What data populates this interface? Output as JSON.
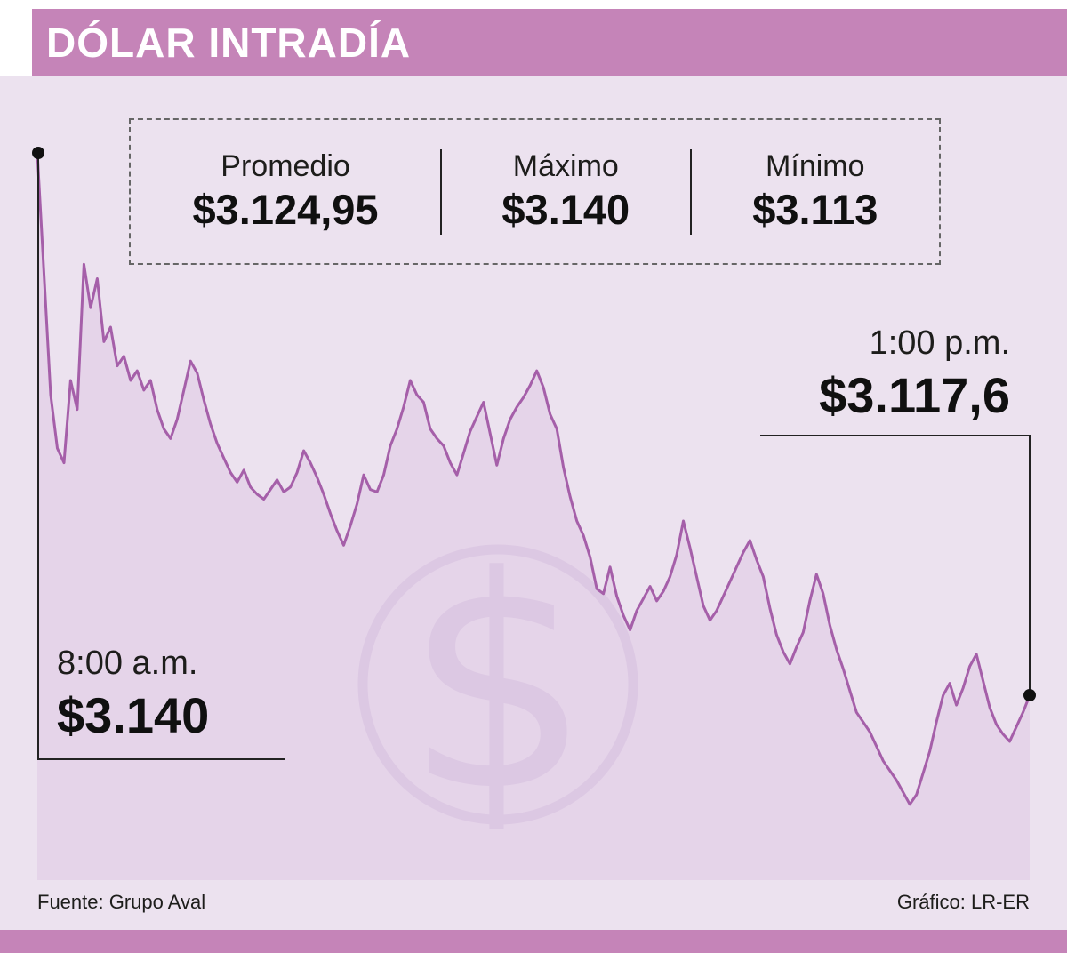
{
  "header": {
    "title": "DÓLAR INTRADÍA"
  },
  "stats": {
    "items": [
      {
        "label": "Promedio",
        "value": "$3.124,95"
      },
      {
        "label": "Máximo",
        "value": "$3.140"
      },
      {
        "label": "Mínimo",
        "value": "$3.113"
      }
    ]
  },
  "annotations": {
    "start": {
      "time": "8:00 a.m.",
      "value": "$3.140"
    },
    "end": {
      "time": "1:00 p.m.",
      "value": "$3.117,6"
    }
  },
  "watermark": {
    "symbol": "$"
  },
  "footer": {
    "source": "Fuente: Grupo Aval",
    "credit": "Gráfico: LR-ER"
  },
  "colors": {
    "header_bar": "#c584b8",
    "background": "#ece2ef",
    "area_fill": "#e5d4e9",
    "line": "#a55fa9",
    "watermark": "#d9c3e1",
    "text": "#1d1d1b"
  },
  "chart_data": {
    "type": "area",
    "title": "Dólar intradía",
    "x_start_label": "8:00 a.m.",
    "x_end_label": "1:00 p.m.",
    "y_unit": "COP",
    "ylim": [
      3113,
      3141
    ],
    "grid": false,
    "legend": false,
    "start_value": 3140.0,
    "end_value": 3117.6,
    "stats": {
      "promedio": 3124.95,
      "maximo": 3140,
      "minimo": 3113
    },
    "values": [
      3140.0,
      3135.0,
      3130.0,
      3127.8,
      3127.2,
      3130.6,
      3129.4,
      3135.4,
      3133.6,
      3134.8,
      3132.2,
      3132.8,
      3131.2,
      3131.6,
      3130.6,
      3131.0,
      3130.2,
      3130.6,
      3129.4,
      3128.6,
      3128.2,
      3129.0,
      3130.2,
      3131.4,
      3130.9,
      3129.8,
      3128.8,
      3128.0,
      3127.4,
      3126.8,
      3126.4,
      3126.9,
      3126.2,
      3125.9,
      3125.7,
      3126.1,
      3126.5,
      3126.0,
      3126.2,
      3126.8,
      3127.7,
      3127.2,
      3126.6,
      3125.9,
      3125.1,
      3124.4,
      3123.8,
      3124.6,
      3125.5,
      3126.7,
      3126.1,
      3126.0,
      3126.7,
      3127.9,
      3128.6,
      3129.5,
      3130.6,
      3130.0,
      3129.7,
      3128.6,
      3128.2,
      3127.9,
      3127.2,
      3126.7,
      3127.6,
      3128.5,
      3129.1,
      3129.7,
      3128.4,
      3127.1,
      3128.2,
      3129.0,
      3129.5,
      3129.9,
      3130.4,
      3131.0,
      3130.3,
      3129.2,
      3128.6,
      3127.0,
      3125.8,
      3124.8,
      3124.2,
      3123.3,
      3122.0,
      3121.8,
      3122.9,
      3121.7,
      3120.9,
      3120.3,
      3121.1,
      3121.6,
      3122.1,
      3121.5,
      3121.9,
      3122.5,
      3123.4,
      3124.8,
      3123.7,
      3122.5,
      3121.3,
      3120.7,
      3121.1,
      3121.7,
      3122.3,
      3122.9,
      3123.5,
      3124.0,
      3123.2,
      3122.5,
      3121.2,
      3120.1,
      3119.4,
      3118.9,
      3119.6,
      3120.2,
      3121.5,
      3122.6,
      3121.8,
      3120.5,
      3119.5,
      3118.7,
      3117.8,
      3116.9,
      3116.5,
      3116.1,
      3115.5,
      3114.9,
      3114.5,
      3114.1,
      3113.6,
      3113.1,
      3113.5,
      3114.4,
      3115.3,
      3116.5,
      3117.6,
      3118.1,
      3117.2,
      3117.9,
      3118.8,
      3119.3,
      3118.2,
      3117.1,
      3116.4,
      3116.0,
      3115.7,
      3116.3,
      3116.9,
      3117.6
    ]
  }
}
